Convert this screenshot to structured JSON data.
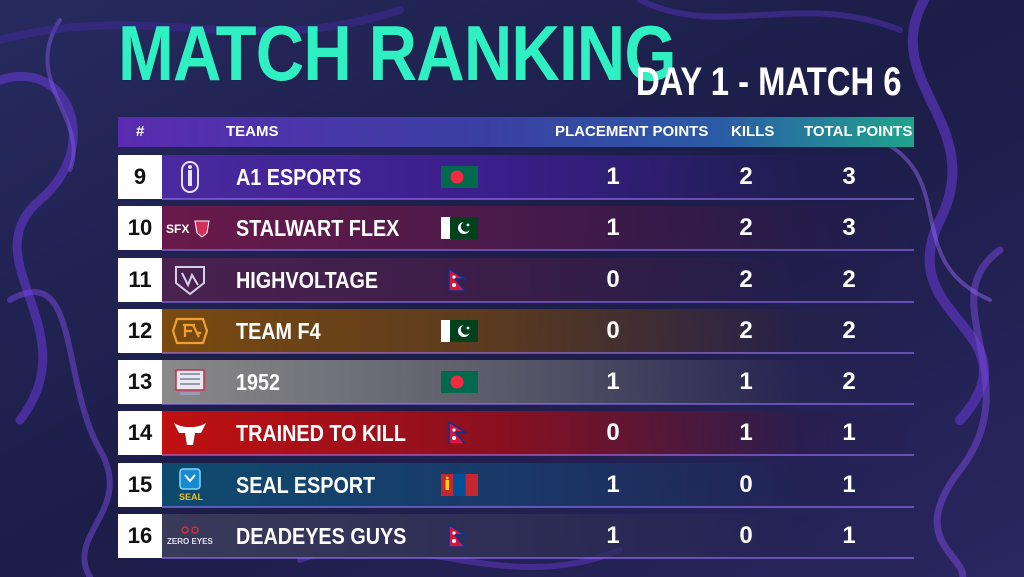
{
  "title": "MATCH RANKING",
  "subtitle": "DAY 1 - MATCH 6",
  "headers": {
    "rank": "#",
    "teams": "TEAMS",
    "placement": "PLACEMENT POINTS",
    "kills": "KILLS",
    "total": "TOTAL POINTS"
  },
  "rows": [
    {
      "rank": "9",
      "team": "A1 ESPORTS",
      "flag": "bangladesh-flag",
      "placement": "1",
      "kills": "2",
      "total": "3",
      "logo": "a1-esports-logo",
      "color": "#4a2aa0"
    },
    {
      "rank": "10",
      "team": "STALWART FLEX",
      "flag": "pakistan-flag",
      "placement": "1",
      "kills": "2",
      "total": "3",
      "logo": "stalwart-flex-logo",
      "color": "#6a1a4a"
    },
    {
      "rank": "11",
      "team": "HIGHVOLTAGE",
      "flag": "nepal-flag",
      "placement": "0",
      "kills": "2",
      "total": "2",
      "logo": "highvoltage-logo",
      "color": "#4a2250"
    },
    {
      "rank": "12",
      "team": "TEAM F4",
      "flag": "pakistan-flag",
      "placement": "0",
      "kills": "2",
      "total": "2",
      "logo": "team-f4-logo",
      "color": "#7a4a10"
    },
    {
      "rank": "13",
      "team": "1952",
      "flag": "bangladesh-flag",
      "placement": "1",
      "kills": "1",
      "total": "2",
      "logo": "team-1952-logo",
      "color": "#8a8a8a"
    },
    {
      "rank": "14",
      "team": "TRAINED TO KILL",
      "flag": "nepal-flag",
      "placement": "0",
      "kills": "1",
      "total": "1",
      "logo": "trained-to-kill-logo",
      "color": "#c01010"
    },
    {
      "rank": "15",
      "team": "SEAL ESPORT",
      "flag": "mongolia-flag",
      "placement": "1",
      "kills": "0",
      "total": "1",
      "logo": "seal-esport-logo",
      "color": "#0e4a6e"
    },
    {
      "rank": "16",
      "team": "DEADEYES GUYS",
      "flag": "nepal-flag",
      "placement": "1",
      "kills": "0",
      "total": "1",
      "logo": "zeroeyes-logo",
      "color": "#3a3a5a"
    }
  ],
  "logo_text": {
    "stalwart": "SFX",
    "zeroeyes": "ZERO EYES",
    "seal": "SEAL"
  },
  "colors": {
    "title": "#2ff0c2",
    "header_start": "#5a2bb0",
    "header_end": "#1fa48c",
    "background": "#1c1e4a"
  }
}
